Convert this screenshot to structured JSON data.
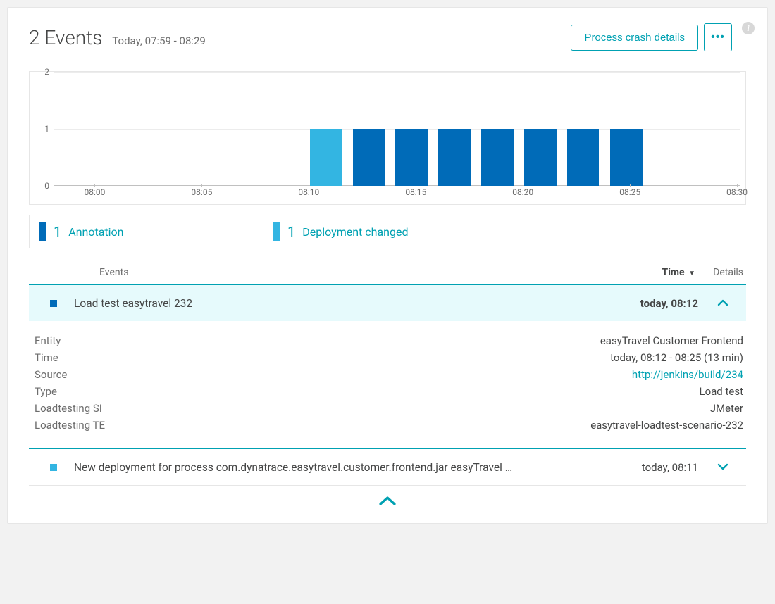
{
  "header": {
    "title": "2 Events",
    "time_range": "Today, 07:59 - 08:29",
    "crash_button": "Process crash details",
    "more_button": "•••"
  },
  "chart": {
    "type": "bar",
    "y_ticks": [
      0,
      1,
      2
    ],
    "y_max": 2,
    "x_ticks": [
      "08:00",
      "08:05",
      "08:10",
      "08:15",
      "08:20",
      "08:25",
      "08:30"
    ],
    "x_tick_positions_pct": [
      6,
      21.6,
      37.2,
      52.8,
      68.4,
      84,
      99.6
    ],
    "bars": [
      {
        "x_pct": 37.4,
        "width_pct": 4.7,
        "value": 1,
        "color": "#33b5e2"
      },
      {
        "x_pct": 43.6,
        "width_pct": 4.7,
        "value": 1,
        "color": "#006bb8"
      },
      {
        "x_pct": 49.8,
        "width_pct": 4.7,
        "value": 1,
        "color": "#006bb8"
      },
      {
        "x_pct": 56.1,
        "width_pct": 4.7,
        "value": 1,
        "color": "#006bb8"
      },
      {
        "x_pct": 62.3,
        "width_pct": 4.7,
        "value": 1,
        "color": "#006bb8"
      },
      {
        "x_pct": 68.6,
        "width_pct": 4.7,
        "value": 1,
        "color": "#006bb8"
      },
      {
        "x_pct": 74.8,
        "width_pct": 4.7,
        "value": 1,
        "color": "#006bb8"
      },
      {
        "x_pct": 81.1,
        "width_pct": 4.7,
        "value": 1,
        "color": "#006bb8"
      }
    ],
    "gridline_values": [
      1,
      2
    ],
    "grid_color": "#ececec",
    "axis_color": "#c0c0c0",
    "background_color": "#ffffff",
    "label_color": "#6d6d6d",
    "label_fontsize": 12
  },
  "legend": [
    {
      "swatch_color": "#006bb8",
      "count": "1",
      "label": "Annotation"
    },
    {
      "swatch_color": "#33b5e2",
      "count": "1",
      "label": "Deployment changed"
    }
  ],
  "table": {
    "col_events": "Events",
    "col_time": "Time",
    "col_details": "Details",
    "sort_indicator": "▼"
  },
  "events": [
    {
      "marker_color": "#006bb8",
      "title": "Load test easytravel 232",
      "time": "today, 08:12",
      "expanded": true,
      "details": [
        {
          "key": "Entity",
          "val": "easyTravel Customer Frontend",
          "link": false
        },
        {
          "key": "Time",
          "val": "today, 08:12 - 08:25 (13 min)",
          "link": false
        },
        {
          "key": "Source",
          "val": "http://jenkins/build/234",
          "link": true
        },
        {
          "key": "Type",
          "val": "Load test",
          "link": false
        },
        {
          "key": "Loadtesting SI",
          "val": "JMeter",
          "link": false
        },
        {
          "key": "Loadtesting TE",
          "val": "easytravel-loadtest-scenario-232",
          "link": false
        }
      ]
    },
    {
      "marker_color": "#33b5e2",
      "title": "New deployment for process com.dynatrace.easytravel.customer.frontend.jar easyTravel …",
      "time": "today, 08:11",
      "expanded": false
    }
  ],
  "colors": {
    "accent": "#00a1b2",
    "panel_border": "#e6e6e6",
    "expanded_bg": "#e6fafc",
    "text": "#454646",
    "muted": "#6d6d6d"
  }
}
